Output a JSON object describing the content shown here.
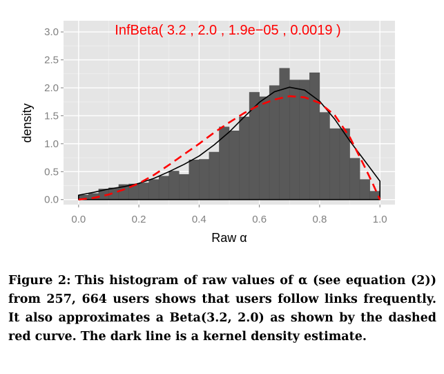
{
  "chart_data": {
    "type": "bar",
    "xlabel": "Raw α",
    "ylabel": "density",
    "xlim": [
      -0.05,
      1.05
    ],
    "ylim": [
      -0.09,
      3.2
    ],
    "xticks": [
      "0.0",
      "0.2",
      "0.4",
      "0.6",
      "0.8",
      "1.0"
    ],
    "yticks": [
      "0.0",
      "0.5",
      "1.0",
      "1.5",
      "2.0",
      "2.5",
      "3.0"
    ],
    "annotation": "InfBeta( 3.2 , 2.0 , 1.9e−05 , 0.0019 )",
    "bin_width": 0.0333,
    "bars": [
      {
        "x0": 0.0,
        "value": 0.08
      },
      {
        "x0": 0.0333,
        "value": 0.11
      },
      {
        "x0": 0.0667,
        "value": 0.19
      },
      {
        "x0": 0.1,
        "value": 0.21
      },
      {
        "x0": 0.1333,
        "value": 0.27
      },
      {
        "x0": 0.1667,
        "value": 0.28
      },
      {
        "x0": 0.2,
        "value": 0.3
      },
      {
        "x0": 0.2333,
        "value": 0.36
      },
      {
        "x0": 0.2667,
        "value": 0.42
      },
      {
        "x0": 0.3,
        "value": 0.51
      },
      {
        "x0": 0.3333,
        "value": 0.45
      },
      {
        "x0": 0.3667,
        "value": 0.71
      },
      {
        "x0": 0.4,
        "value": 0.72
      },
      {
        "x0": 0.4333,
        "value": 0.85
      },
      {
        "x0": 0.4667,
        "value": 1.3
      },
      {
        "x0": 0.5,
        "value": 1.23
      },
      {
        "x0": 0.5333,
        "value": 1.48
      },
      {
        "x0": 0.5667,
        "value": 1.92
      },
      {
        "x0": 0.6,
        "value": 1.84
      },
      {
        "x0": 0.6333,
        "value": 2.04
      },
      {
        "x0": 0.6667,
        "value": 2.35
      },
      {
        "x0": 0.7,
        "value": 2.14
      },
      {
        "x0": 0.7333,
        "value": 2.14
      },
      {
        "x0": 0.7667,
        "value": 2.27
      },
      {
        "x0": 0.8,
        "value": 1.56
      },
      {
        "x0": 0.8333,
        "value": 1.27
      },
      {
        "x0": 0.8667,
        "value": 1.27
      },
      {
        "x0": 0.9,
        "value": 0.74
      },
      {
        "x0": 0.9333,
        "value": 0.36
      },
      {
        "x0": 0.9667,
        "value": 0.15
      }
    ],
    "series": [
      {
        "style": "solid",
        "color": "#000000",
        "points": [
          [
            0.0,
            0.08
          ],
          [
            0.05,
            0.13
          ],
          [
            0.1,
            0.19
          ],
          [
            0.15,
            0.23
          ],
          [
            0.2,
            0.29
          ],
          [
            0.25,
            0.38
          ],
          [
            0.3,
            0.5
          ],
          [
            0.35,
            0.63
          ],
          [
            0.4,
            0.78
          ],
          [
            0.45,
            0.98
          ],
          [
            0.5,
            1.21
          ],
          [
            0.55,
            1.48
          ],
          [
            0.6,
            1.74
          ],
          [
            0.65,
            1.93
          ],
          [
            0.7,
            2.01
          ],
          [
            0.75,
            1.96
          ],
          [
            0.8,
            1.76
          ],
          [
            0.85,
            1.44
          ],
          [
            0.9,
            1.05
          ],
          [
            0.95,
            0.69
          ],
          [
            1.0,
            0.33
          ],
          [
            1.0,
            0.0
          ]
        ]
      },
      {
        "style": "dashed",
        "color": "#ff0000",
        "points": [
          [
            0.0,
            0.0
          ],
          [
            0.05,
            0.03
          ],
          [
            0.1,
            0.09
          ],
          [
            0.15,
            0.18
          ],
          [
            0.2,
            0.29
          ],
          [
            0.25,
            0.44
          ],
          [
            0.3,
            0.62
          ],
          [
            0.35,
            0.81
          ],
          [
            0.4,
            1.0
          ],
          [
            0.45,
            1.2
          ],
          [
            0.5,
            1.38
          ],
          [
            0.55,
            1.55
          ],
          [
            0.6,
            1.69
          ],
          [
            0.65,
            1.79
          ],
          [
            0.7,
            1.85
          ],
          [
            0.75,
            1.83
          ],
          [
            0.8,
            1.73
          ],
          [
            0.85,
            1.51
          ],
          [
            0.9,
            1.12
          ],
          [
            0.95,
            0.58
          ],
          [
            0.975,
            0.3
          ],
          [
            1.0,
            0.0
          ]
        ]
      }
    ],
    "colors": {
      "panel": "#e5e5e5",
      "grid": "#ffffff",
      "bar": "#595959",
      "bar_edge": "#4d4d4d",
      "annotation": "#ff0000"
    }
  },
  "caption": {
    "label": "Figure 2:",
    "text": "This histogram of raw values of α (see equation (2)) from 257, 664 users shows that users follow links frequently. It also approximates a Beta(3.2, 2.0) as shown by the dashed red curve. The dark line is a kernel density estimate."
  }
}
